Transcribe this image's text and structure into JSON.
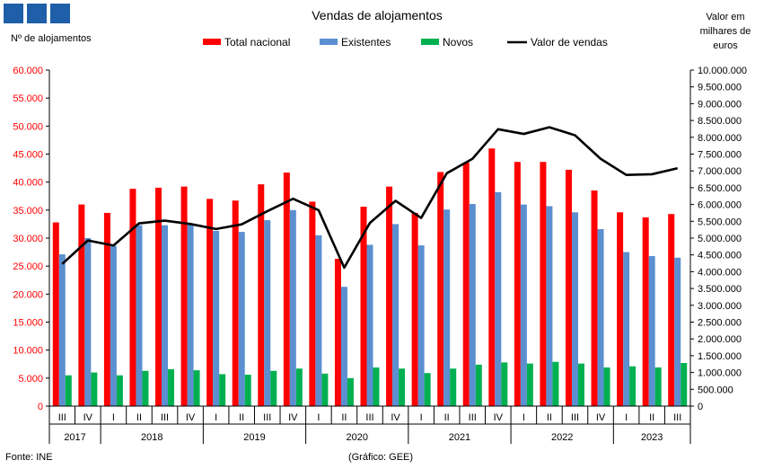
{
  "header": {
    "title": "Vendas de alojamentos",
    "left_axis_label": "Nº de alojamentos",
    "right_axis_label_lines": [
      "Valor em",
      "milhares de",
      "euros"
    ],
    "source": "Fonte: INE",
    "credit": "(Gráfico: GEE)",
    "logo_color": "#1f5ea8"
  },
  "colors": {
    "total": "#ff0000",
    "existentes": "#5b8fd0",
    "novos": "#00b050",
    "valor": "#000000",
    "left_axis_text": "#ff0000",
    "axis": "#000000"
  },
  "chart_data": {
    "type": "bar",
    "title": "Vendas de alojamentos",
    "ylabel": "Nº de alojamentos",
    "y2label": "Valor em milhares de euros",
    "ylim": [
      0,
      60000
    ],
    "y2lim": [
      0,
      10000000
    ],
    "yticks": [
      "0",
      "5.000",
      "10.000",
      "15.000",
      "20.000",
      "25.000",
      "30.000",
      "35.000",
      "40.000",
      "45.000",
      "50.000",
      "55.000",
      "60.000"
    ],
    "y2ticks": [
      "0",
      "500.000",
      "1.000.000",
      "1.500.000",
      "2.000.000",
      "2.500.000",
      "3.000.000",
      "3.500.000",
      "4.000.000",
      "4.500.000",
      "5.000.000",
      "5.500.000",
      "6.000.000",
      "6.500.000",
      "7.000.000",
      "7.500.000",
      "8.000.000",
      "8.500.000",
      "9.000.000",
      "9.500.000",
      "10.000.000"
    ],
    "quarters": [
      "III",
      "IV",
      "I",
      "II",
      "III",
      "IV",
      "I",
      "II",
      "III",
      "IV",
      "I",
      "II",
      "III",
      "IV",
      "I",
      "II",
      "III",
      "IV",
      "I",
      "II",
      "III",
      "IV",
      "I",
      "II",
      "III"
    ],
    "years": [
      {
        "label": "2017",
        "count": 2
      },
      {
        "label": "2018",
        "count": 4
      },
      {
        "label": "2019",
        "count": 4
      },
      {
        "label": "2020",
        "count": 4
      },
      {
        "label": "2021",
        "count": 4
      },
      {
        "label": "2022",
        "count": 4
      },
      {
        "label": "2023",
        "count": 3
      }
    ],
    "legend_position": "top",
    "grid": false,
    "series": [
      {
        "name": "Total nacional",
        "kind": "bar",
        "axis": "left",
        "values": [
          32800,
          36000,
          34500,
          38800,
          39000,
          39200,
          37000,
          36700,
          39600,
          41700,
          36500,
          26300,
          35600,
          39200,
          34500,
          41800,
          43500,
          46000,
          43600,
          43600,
          42200,
          38500,
          34600,
          33700,
          34300
        ]
      },
      {
        "name": "Existentes",
        "kind": "bar",
        "axis": "left",
        "values": [
          27100,
          30000,
          28600,
          32300,
          32300,
          32600,
          31300,
          31100,
          33200,
          35000,
          30500,
          21300,
          28800,
          32500,
          28700,
          35100,
          36100,
          38200,
          36000,
          35700,
          34600,
          31600,
          27500,
          26800,
          26500
        ]
      },
      {
        "name": "Novos",
        "kind": "bar",
        "axis": "left",
        "values": [
          5500,
          6000,
          5500,
          6300,
          6600,
          6400,
          5700,
          5600,
          6300,
          6700,
          5800,
          5000,
          6900,
          6700,
          5900,
          6700,
          7400,
          7800,
          7600,
          7900,
          7600,
          6900,
          7100,
          6900,
          7700
        ]
      },
      {
        "name": "Valor de vendas",
        "kind": "line",
        "axis": "right",
        "values": [
          4230000,
          4930000,
          4780000,
          5440000,
          5520000,
          5420000,
          5270000,
          5410000,
          5800000,
          6170000,
          5830000,
          4120000,
          5450000,
          6110000,
          5600000,
          6930000,
          7360000,
          8240000,
          8100000,
          8300000,
          8060000,
          7360000,
          6880000,
          6900000,
          7080000
        ]
      }
    ]
  }
}
